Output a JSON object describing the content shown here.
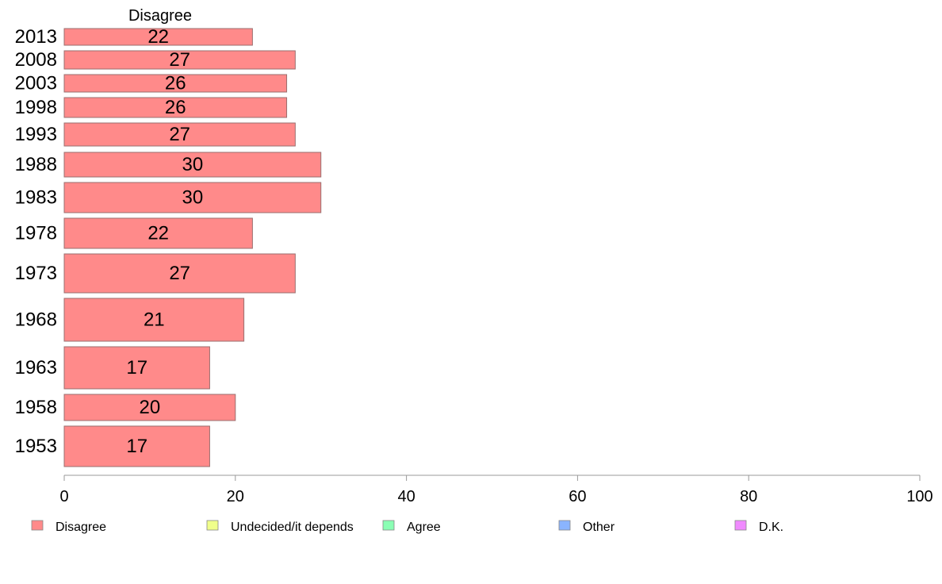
{
  "chart_data": {
    "type": "bar",
    "orientation": "horizontal",
    "series_title": "Disagree",
    "categories": [
      "2013",
      "2008",
      "2003",
      "1998",
      "1993",
      "1988",
      "1983",
      "1978",
      "1973",
      "1968",
      "1963",
      "1958",
      "1953"
    ],
    "values": [
      22,
      27,
      26,
      26,
      27,
      30,
      30,
      22,
      27,
      21,
      17,
      20,
      17
    ],
    "value_labels": [
      "22",
      "27",
      "26",
      "26",
      "27",
      "30",
      "30",
      "22",
      "27",
      "21",
      "17",
      "20",
      "17"
    ],
    "xlim": [
      0,
      100
    ],
    "xticks": [
      "0",
      "20",
      "40",
      "60",
      "80",
      "100"
    ],
    "xlabel": "",
    "ylabel": "",
    "grid": false,
    "legend_position": "bottom",
    "legend": [
      {
        "label": "Disagree",
        "color": "#ff8a8a"
      },
      {
        "label": "Undecided/it depends",
        "color": "#f0ff8a"
      },
      {
        "label": "Agree",
        "color": "#8affb4"
      },
      {
        "label": "Other",
        "color": "#8ab4ff"
      },
      {
        "label": "D.K.",
        "color": "#f08aff"
      }
    ],
    "bar_color": "#ff8a8a"
  }
}
